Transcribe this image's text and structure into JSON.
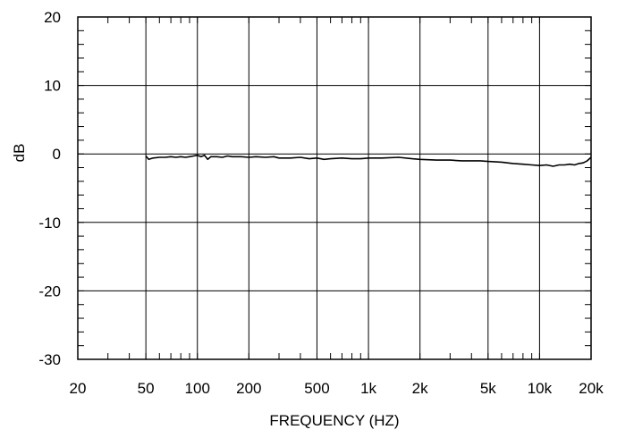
{
  "chart_data": {
    "type": "line",
    "title": "",
    "xlabel": "FREQUENCY  (HZ)",
    "ylabel": "dB",
    "xscale": "log",
    "xlim": [
      20,
      20000
    ],
    "ylim": [
      -30,
      20
    ],
    "grid": true,
    "x_ticks": [
      {
        "value": 20,
        "label": "20"
      },
      {
        "value": 50,
        "label": "50"
      },
      {
        "value": 100,
        "label": "100"
      },
      {
        "value": 200,
        "label": "200"
      },
      {
        "value": 500,
        "label": "500"
      },
      {
        "value": 1000,
        "label": "1k"
      },
      {
        "value": 2000,
        "label": "2k"
      },
      {
        "value": 5000,
        "label": "5k"
      },
      {
        "value": 10000,
        "label": "10k"
      },
      {
        "value": 20000,
        "label": "20k"
      }
    ],
    "y_ticks": [
      {
        "value": 20,
        "label": "20"
      },
      {
        "value": 10,
        "label": "10"
      },
      {
        "value": 0,
        "label": "0"
      },
      {
        "value": -10,
        "label": "-10"
      },
      {
        "value": -20,
        "label": "-20"
      },
      {
        "value": -30,
        "label": "-30"
      }
    ],
    "series": [
      {
        "color": "#000000",
        "x": [
          50,
          52,
          55,
          60,
          65,
          70,
          75,
          80,
          85,
          90,
          95,
          100,
          105,
          110,
          115,
          120,
          130,
          140,
          150,
          160,
          180,
          200,
          220,
          250,
          280,
          300,
          350,
          400,
          450,
          500,
          550,
          600,
          700,
          800,
          900,
          1000,
          1200,
          1500,
          1800,
          2000,
          2500,
          3000,
          3500,
          4000,
          4500,
          5000,
          6000,
          7000,
          8000,
          9000,
          10000,
          11000,
          12000,
          13000,
          14000,
          15000,
          16000,
          17000,
          18000,
          19000,
          20000
        ],
        "y": [
          -0.3,
          -0.8,
          -0.6,
          -0.5,
          -0.5,
          -0.4,
          -0.5,
          -0.4,
          -0.5,
          -0.4,
          -0.3,
          -0.2,
          -0.4,
          -0.2,
          -0.8,
          -0.4,
          -0.4,
          -0.5,
          -0.3,
          -0.4,
          -0.4,
          -0.5,
          -0.4,
          -0.5,
          -0.4,
          -0.6,
          -0.6,
          -0.5,
          -0.7,
          -0.6,
          -0.8,
          -0.7,
          -0.6,
          -0.7,
          -0.7,
          -0.6,
          -0.6,
          -0.5,
          -0.7,
          -0.8,
          -0.9,
          -0.9,
          -1.0,
          -1.0,
          -1.0,
          -1.1,
          -1.2,
          -1.4,
          -1.5,
          -1.6,
          -1.7,
          -1.6,
          -1.8,
          -1.6,
          -1.6,
          -1.5,
          -1.6,
          -1.4,
          -1.3,
          -1.0,
          -0.5
        ]
      }
    ]
  }
}
